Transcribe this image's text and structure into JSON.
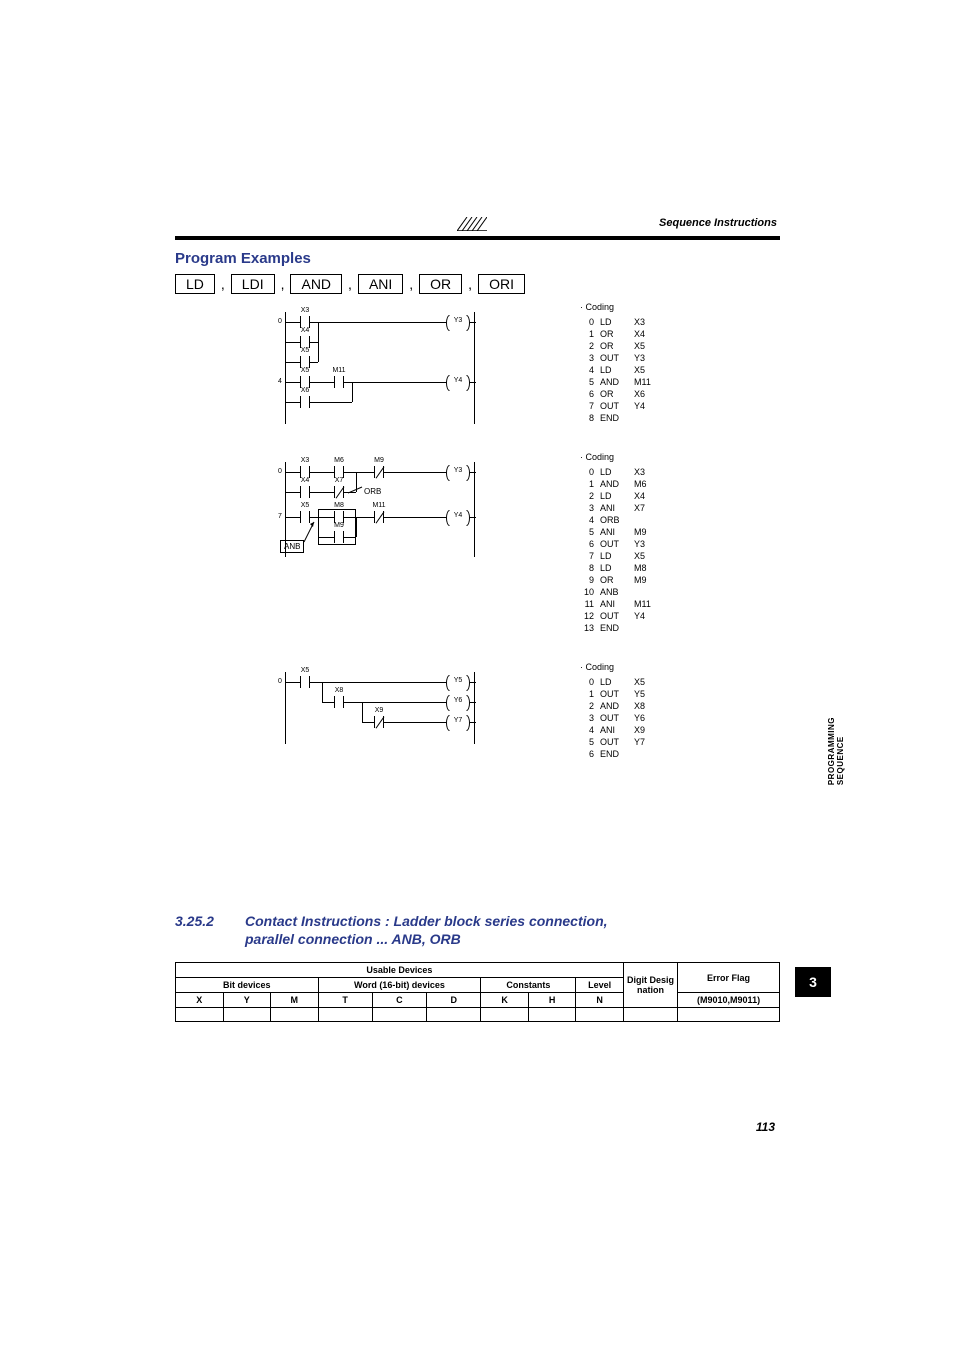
{
  "header": {
    "section_label": "Sequence Instructions"
  },
  "section_title": "Program Examples",
  "instructions": [
    "LD",
    "LDI",
    "AND",
    "ANI",
    "OR",
    "ORI"
  ],
  "diagrams": [
    {
      "rail_nums": [
        "0",
        "4"
      ],
      "contacts": [
        {
          "row": 0,
          "x": 14,
          "lbl": "X3",
          "nc": false
        },
        {
          "row": 1,
          "x": 14,
          "lbl": "X4",
          "nc": false
        },
        {
          "row": 2,
          "x": 14,
          "lbl": "X5",
          "nc": false
        },
        {
          "row": 3,
          "x": 14,
          "lbl": "X5",
          "nc": false
        },
        {
          "row": 3,
          "x": 48,
          "lbl": "M11",
          "nc": false
        },
        {
          "row": 4,
          "x": 14,
          "lbl": "X6",
          "nc": false
        }
      ],
      "coils": [
        {
          "row": 0,
          "lbl": "Y3"
        },
        {
          "row": 3,
          "lbl": "Y4"
        }
      ],
      "coding_title": "· Coding",
      "coding": [
        [
          "0",
          "LD",
          "X3"
        ],
        [
          "1",
          "OR",
          "X4"
        ],
        [
          "2",
          "OR",
          "X5"
        ],
        [
          "3",
          "OUT",
          "Y3"
        ],
        [
          "4",
          "LD",
          "X5"
        ],
        [
          "5",
          "AND",
          "M11"
        ],
        [
          "6",
          "OR",
          "X6"
        ],
        [
          "7",
          "OUT",
          "Y4"
        ],
        [
          "8",
          "END",
          ""
        ]
      ]
    },
    {
      "rail_nums": [
        "0",
        "7"
      ],
      "contacts": [
        {
          "row": 0,
          "x": 14,
          "lbl": "X3",
          "nc": false
        },
        {
          "row": 0,
          "x": 48,
          "lbl": "M6",
          "nc": false
        },
        {
          "row": 0,
          "x": 88,
          "lbl": "M9",
          "nc": true
        },
        {
          "row": 1,
          "x": 14,
          "lbl": "X4",
          "nc": false
        },
        {
          "row": 1,
          "x": 48,
          "lbl": "X7",
          "nc": true
        },
        {
          "row": 2,
          "x": 14,
          "lbl": "X5",
          "nc": false
        },
        {
          "row": 2,
          "x": 48,
          "lbl": "M8",
          "nc": false
        },
        {
          "row": 2,
          "x": 88,
          "lbl": "M11",
          "nc": true
        },
        {
          "row": 3,
          "x": 48,
          "lbl": "M9",
          "nc": false
        }
      ],
      "coils": [
        {
          "row": 0,
          "lbl": "Y3"
        },
        {
          "row": 2,
          "lbl": "Y4"
        }
      ],
      "orb_label": "ORB",
      "anb_label": "ANB",
      "coding_title": "· Coding",
      "coding": [
        [
          "0",
          "LD",
          "X3"
        ],
        [
          "1",
          "AND",
          "M6"
        ],
        [
          "2",
          "LD",
          "X4"
        ],
        [
          "3",
          "ANI",
          "X7"
        ],
        [
          "4",
          "ORB",
          ""
        ],
        [
          "5",
          "ANI",
          "M9"
        ],
        [
          "6",
          "OUT",
          "Y3"
        ],
        [
          "7",
          "LD",
          "X5"
        ],
        [
          "8",
          "LD",
          "M8"
        ],
        [
          "9",
          "OR",
          "M9"
        ],
        [
          "10",
          "ANB",
          ""
        ],
        [
          "11",
          "ANI",
          "M11"
        ],
        [
          "12",
          "OUT",
          "Y4"
        ],
        [
          "13",
          "END",
          ""
        ]
      ]
    },
    {
      "rail_nums": [
        "0"
      ],
      "contacts": [
        {
          "row": 0,
          "x": 14,
          "lbl": "X5",
          "nc": false
        },
        {
          "row": 1,
          "x": 48,
          "lbl": "X8",
          "nc": false
        },
        {
          "row": 2,
          "x": 88,
          "lbl": "X9",
          "nc": true
        }
      ],
      "coils": [
        {
          "row": 0,
          "lbl": "Y5"
        },
        {
          "row": 1,
          "lbl": "Y6"
        },
        {
          "row": 2,
          "lbl": "Y7"
        }
      ],
      "coding_title": "· Coding",
      "coding": [
        [
          "0",
          "LD",
          "X5"
        ],
        [
          "1",
          "OUT",
          "Y5"
        ],
        [
          "2",
          "AND",
          "X8"
        ],
        [
          "3",
          "OUT",
          "Y6"
        ],
        [
          "4",
          "ANI",
          "X9"
        ],
        [
          "5",
          "OUT",
          "Y7"
        ],
        [
          "6",
          "END",
          ""
        ]
      ]
    }
  ],
  "vertical_label": "SEQUENCE PROGRAMMING",
  "subsection": {
    "number": "3.25.2",
    "title_line1": "Contact Instructions : Ladder block series connection,",
    "title_line2": "parallel connection ... ANB, ORB"
  },
  "chapter_tab": "3",
  "table": {
    "h1": "Usable Devices",
    "h_digit": "Digit Desig nation",
    "h_error": "Error Flag",
    "h_bit": "Bit devices",
    "h_word": "Word (16-bit) devices",
    "h_const": "Constants",
    "h_level": "Level",
    "cols": [
      "X",
      "Y",
      "M",
      "T",
      "C",
      "D",
      "K",
      "H",
      "N"
    ],
    "error_sub": "(M9010,M9011)"
  },
  "page_number": "113"
}
